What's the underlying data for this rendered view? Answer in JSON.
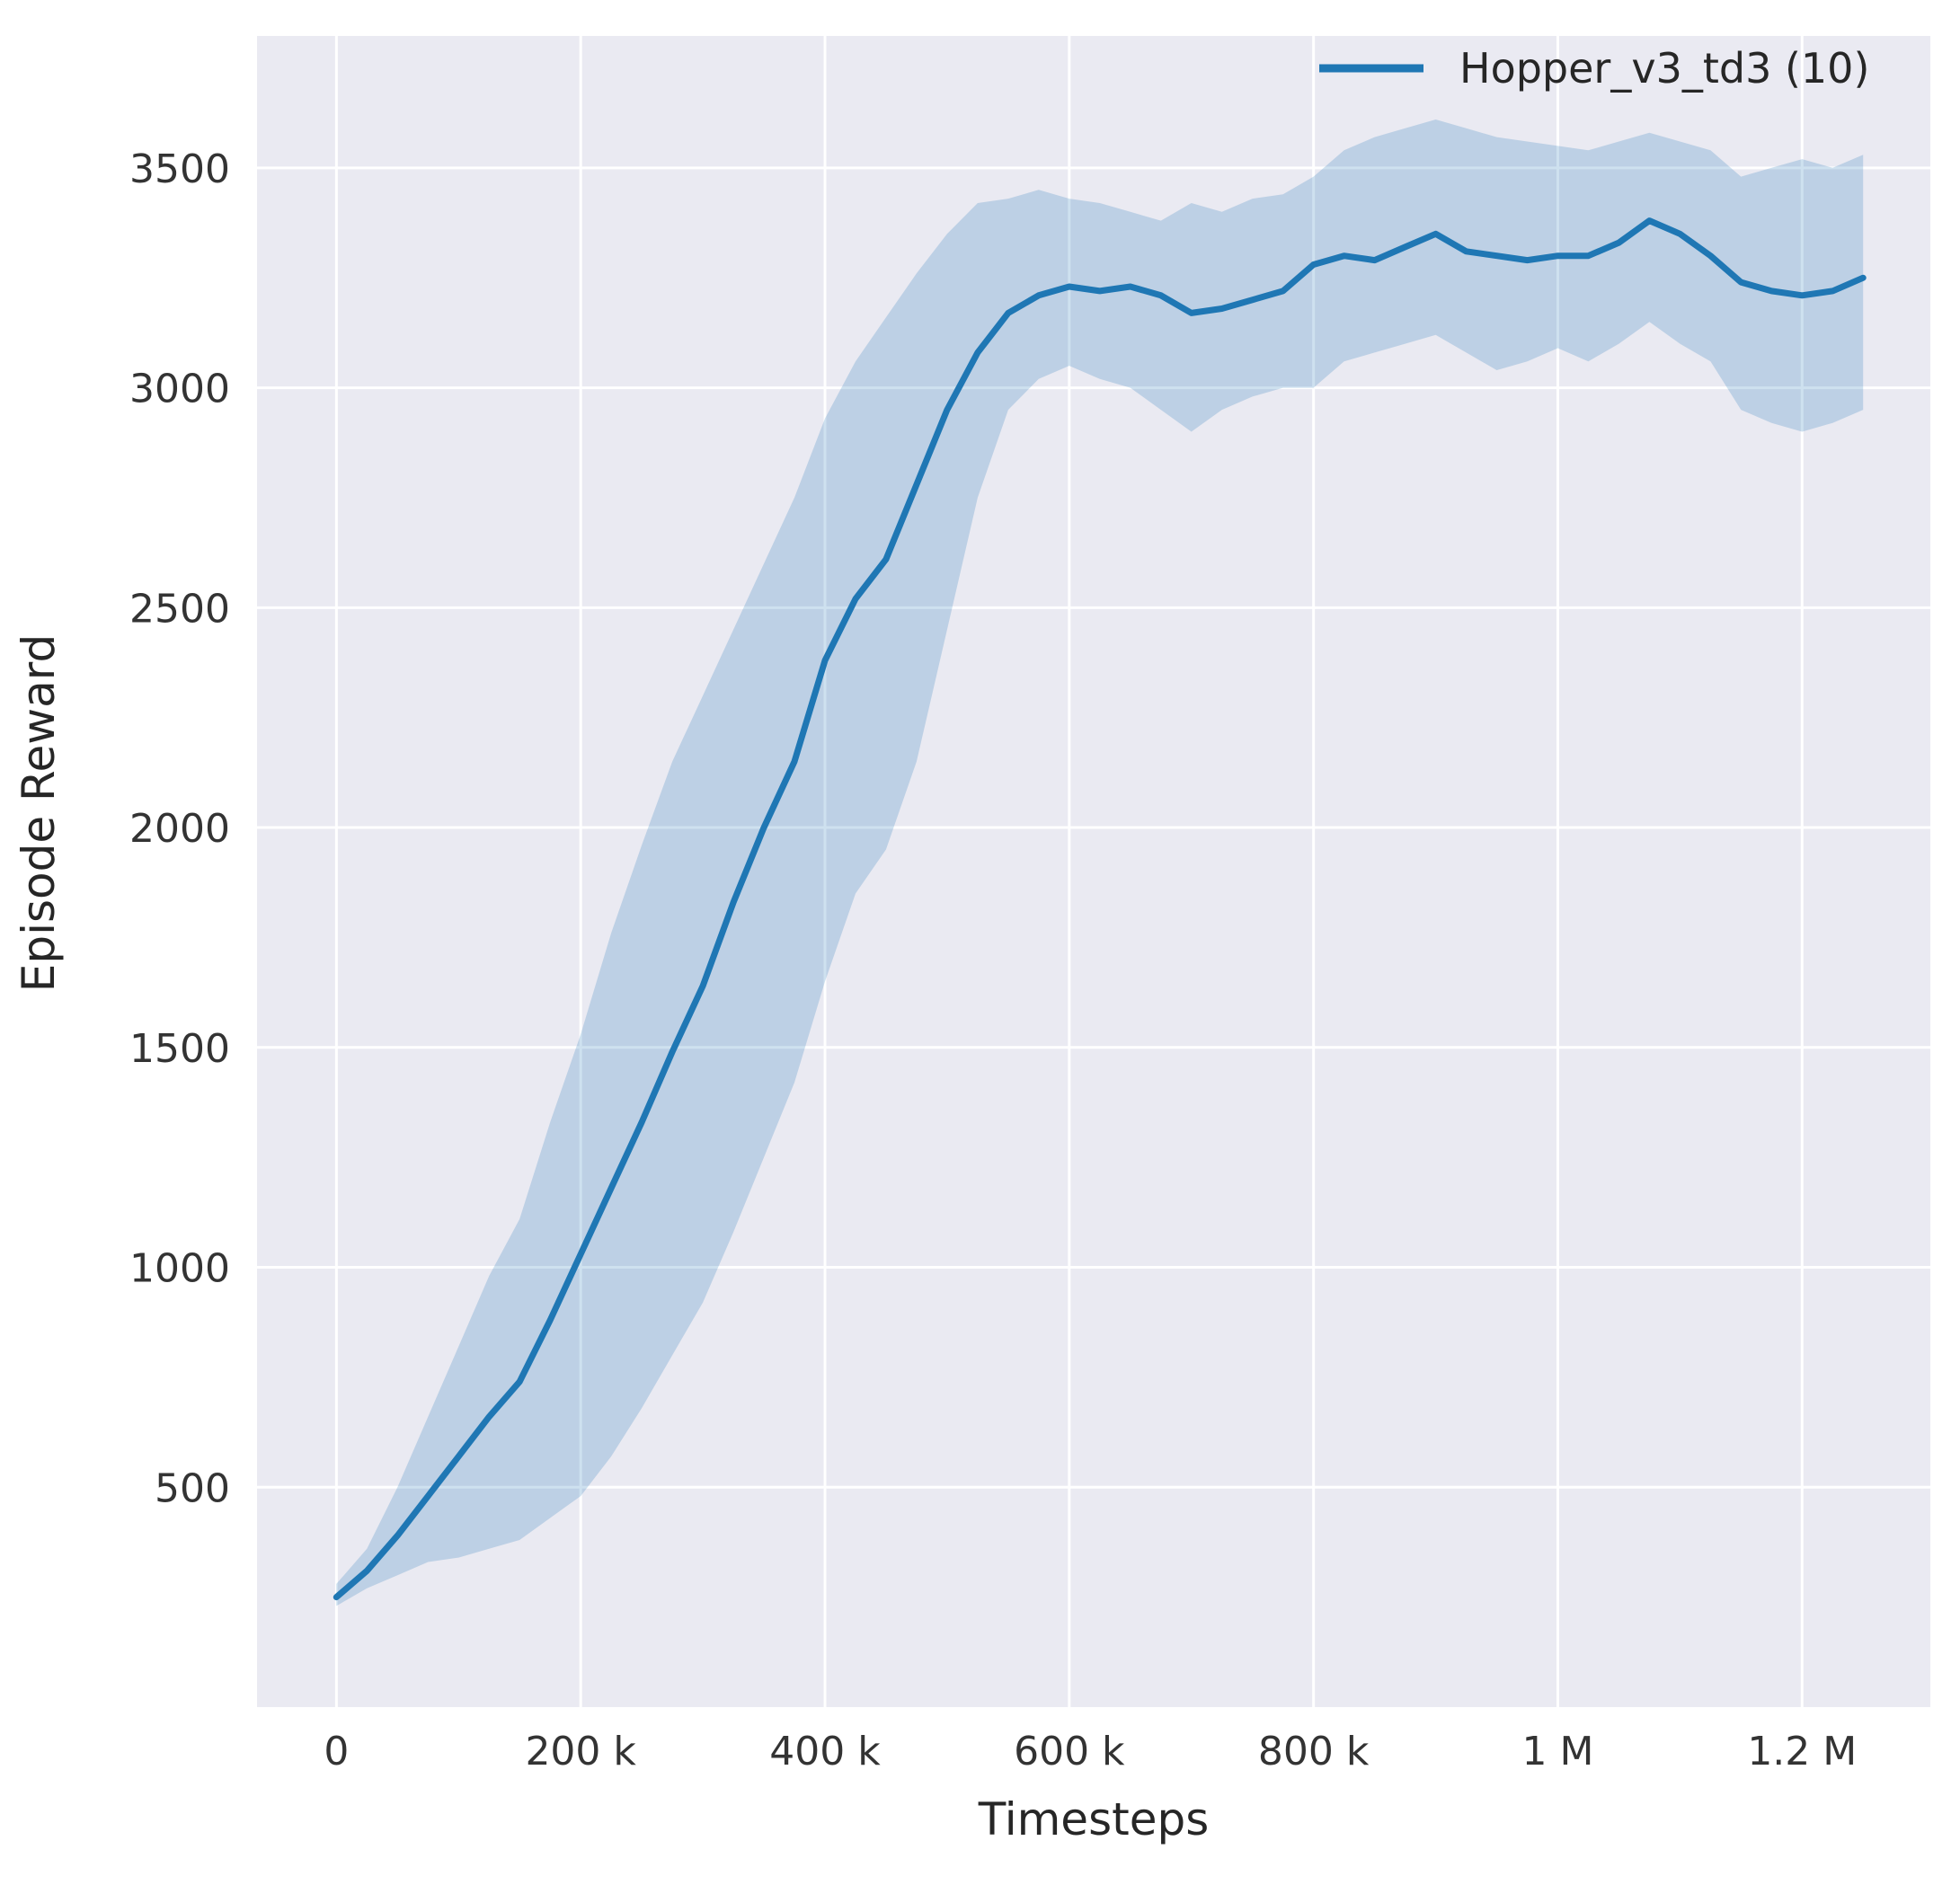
{
  "figure": {
    "background_color": "#ffffff"
  },
  "chart_data": {
    "type": "line",
    "title": "",
    "xlabel": "Timesteps",
    "ylabel": "Episode Reward",
    "xlim": [
      -65000,
      1305000
    ],
    "ylim": [
      0,
      3800
    ],
    "grid": true,
    "legend_position": "upper right",
    "x_ticks": [
      0,
      200000,
      400000,
      600000,
      800000,
      1000000,
      1200000
    ],
    "x_tick_labels": [
      "0",
      "200 k",
      "400 k",
      "600 k",
      "800 k",
      "1 M",
      "1.2 M"
    ],
    "y_ticks": [
      500,
      1000,
      1500,
      2000,
      2500,
      3000,
      3500
    ],
    "y_tick_labels": [
      "500",
      "1000",
      "1500",
      "2000",
      "2500",
      "3000",
      "3500"
    ],
    "x": [
      0,
      25000,
      50000,
      75000,
      100000,
      125000,
      150000,
      175000,
      200000,
      225000,
      250000,
      275000,
      300000,
      325000,
      350000,
      375000,
      400000,
      425000,
      450000,
      475000,
      500000,
      525000,
      550000,
      575000,
      600000,
      625000,
      650000,
      675000,
      700000,
      725000,
      750000,
      775000,
      800000,
      825000,
      850000,
      875000,
      900000,
      925000,
      950000,
      975000,
      1000000,
      1025000,
      1050000,
      1075000,
      1100000,
      1125000,
      1150000,
      1175000,
      1200000,
      1225000,
      1250000
    ],
    "series": [
      {
        "name": "Hopper_v3_td3 (10)",
        "mean": [
          250,
          310,
          390,
          480,
          570,
          660,
          740,
          880,
          1030,
          1180,
          1330,
          1490,
          1640,
          1830,
          2000,
          2150,
          2380,
          2520,
          2610,
          2780,
          2950,
          3080,
          3170,
          3210,
          3230,
          3220,
          3230,
          3210,
          3170,
          3180,
          3200,
          3220,
          3280,
          3300,
          3290,
          3320,
          3350,
          3310,
          3300,
          3290,
          3300,
          3300,
          3330,
          3380,
          3350,
          3300,
          3240,
          3220,
          3210,
          3220,
          3250
        ],
        "band_low": [
          230,
          270,
          300,
          330,
          340,
          360,
          380,
          430,
          480,
          570,
          680,
          800,
          920,
          1080,
          1250,
          1420,
          1650,
          1850,
          1950,
          2150,
          2450,
          2750,
          2950,
          3020,
          3050,
          3020,
          3000,
          2950,
          2900,
          2950,
          2980,
          3000,
          3000,
          3060,
          3080,
          3100,
          3120,
          3080,
          3040,
          3060,
          3090,
          3060,
          3100,
          3150,
          3100,
          3060,
          2950,
          2920,
          2900,
          2920,
          2950
        ],
        "band_high": [
          280,
          360,
          500,
          660,
          820,
          980,
          1110,
          1330,
          1530,
          1760,
          1960,
          2150,
          2300,
          2450,
          2600,
          2750,
          2930,
          3060,
          3160,
          3260,
          3350,
          3420,
          3430,
          3450,
          3430,
          3420,
          3400,
          3380,
          3420,
          3400,
          3430,
          3440,
          3480,
          3540,
          3570,
          3590,
          3610,
          3590,
          3570,
          3560,
          3550,
          3540,
          3560,
          3580,
          3560,
          3540,
          3480,
          3500,
          3520,
          3500,
          3530
        ]
      }
    ],
    "style": {
      "axes_background": "#eaeaf2",
      "grid_color": "#ffffff",
      "line_color": "#1f77b4",
      "band_color": "#1f77b4",
      "band_opacity": 0.22,
      "tick_label_color": "#333333",
      "axis_label_color": "#262626",
      "legend_text_color": "#262626"
    }
  }
}
